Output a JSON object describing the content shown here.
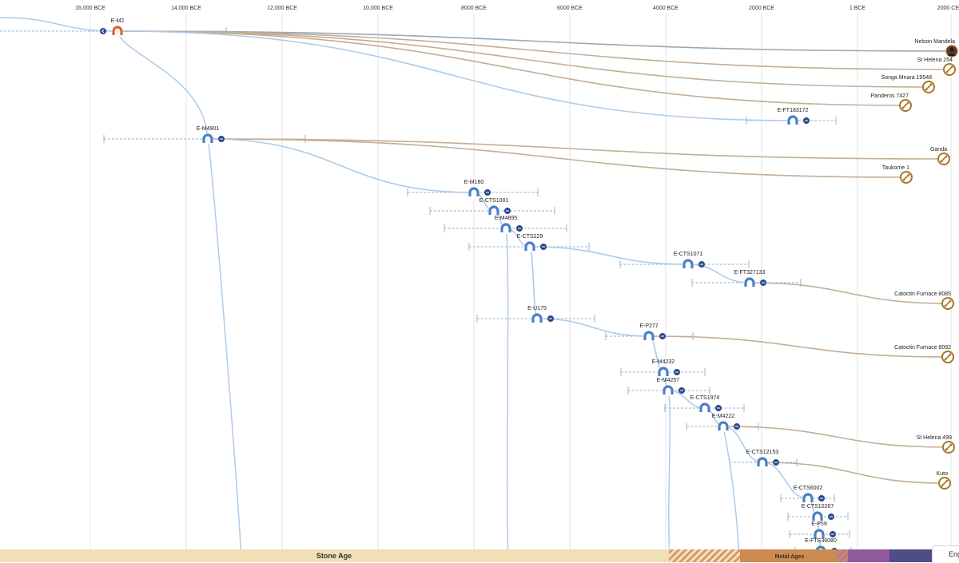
{
  "axis": {
    "ticks": [
      "16,000 BCE",
      "14,000 BCE",
      "12,000 BCE",
      "10,000 BCE",
      "8000 BCE",
      "6000 BCE",
      "4000 BCE",
      "2000 BCE",
      "1 BCE",
      "2000 CE"
    ]
  },
  "colors": {
    "branch": "#aecbe8",
    "leaf_branch": "#c4ad94",
    "root_branch": "#9aa7b5",
    "node": "#4a7fc8",
    "root_node": "#e0632f",
    "dot": "#284b8e",
    "leaf_icon": "#a8772a",
    "stone_age": "#efe0b5",
    "metal_ages": "#cd8a4f",
    "grid": "#e4e4e4"
  },
  "nodes": [
    {
      "label": "E-M2"
    },
    {
      "label": "E-M4901"
    },
    {
      "label": "E-FT183172"
    },
    {
      "label": "E-M180"
    },
    {
      "label": "E-CTS1001"
    },
    {
      "label": "E-M4895"
    },
    {
      "label": "E-CTS229"
    },
    {
      "label": "E-CTS1071"
    },
    {
      "label": "E-FT327133"
    },
    {
      "label": "E-U175"
    },
    {
      "label": "E-P277"
    },
    {
      "label": "E-M4232"
    },
    {
      "label": "E-M4257"
    },
    {
      "label": "E-CTS1974"
    },
    {
      "label": "E-M4222"
    },
    {
      "label": "E-CTS12153"
    },
    {
      "label": "E-CTS6002"
    },
    {
      "label": "E-CTS10267"
    },
    {
      "label": "E-P59"
    },
    {
      "label": "E-FTE36080"
    }
  ],
  "leaves": [
    {
      "label": "Nelson Mandela",
      "icon": "portrait-icon"
    },
    {
      "label": "St Helena 254",
      "icon": "bone-icon"
    },
    {
      "label": "Songa Mnara 19548",
      "icon": "bone-icon"
    },
    {
      "label": "Panderos 7427",
      "icon": "bone-icon"
    },
    {
      "label": "Ganda",
      "icon": "bone-icon"
    },
    {
      "label": "Taukome 1",
      "icon": "bone-icon"
    },
    {
      "label": "Catoctin Furnace 8085",
      "icon": "bone-icon"
    },
    {
      "label": "Catoctin Furnace 8092",
      "icon": "bone-icon"
    },
    {
      "label": "St Helena 499",
      "icon": "bone-icon"
    },
    {
      "label": "Kuto",
      "icon": "bone-icon"
    }
  ],
  "ages": {
    "stone": "Stone Age",
    "metal": "Metal Ages"
  },
  "language_tab": "Eng"
}
